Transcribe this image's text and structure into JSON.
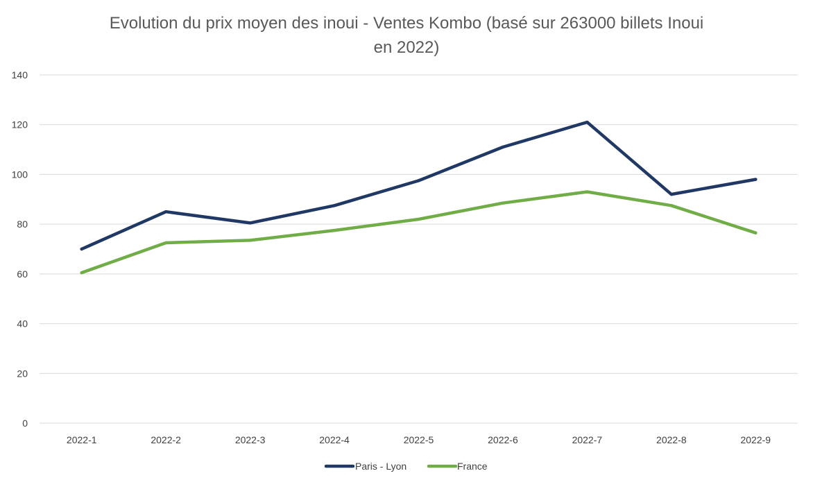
{
  "chart_data": {
    "type": "line",
    "title_lines": [
      "Evolution du prix moyen des inoui - Ventes Kombo (basé sur 263000 billets Inoui",
      "en 2022)"
    ],
    "xlabel": "",
    "ylabel": "",
    "categories": [
      "2022-1",
      "2022-2",
      "2022-3",
      "2022-4",
      "2022-5",
      "2022-6",
      "2022-7",
      "2022-8",
      "2022-9"
    ],
    "ylim": [
      0,
      140
    ],
    "yticks": [
      0,
      20,
      40,
      60,
      80,
      100,
      120,
      140
    ],
    "grid": true,
    "legend_position": "bottom",
    "series": [
      {
        "name": "Paris - Lyon",
        "color": "#203864",
        "values": [
          70,
          85,
          80.5,
          87.5,
          97.5,
          111,
          121,
          92,
          98
        ]
      },
      {
        "name": "France",
        "color": "#70ad47",
        "values": [
          60.5,
          72.5,
          73.5,
          77.5,
          82,
          88.5,
          93,
          87.5,
          76.5
        ]
      }
    ]
  }
}
